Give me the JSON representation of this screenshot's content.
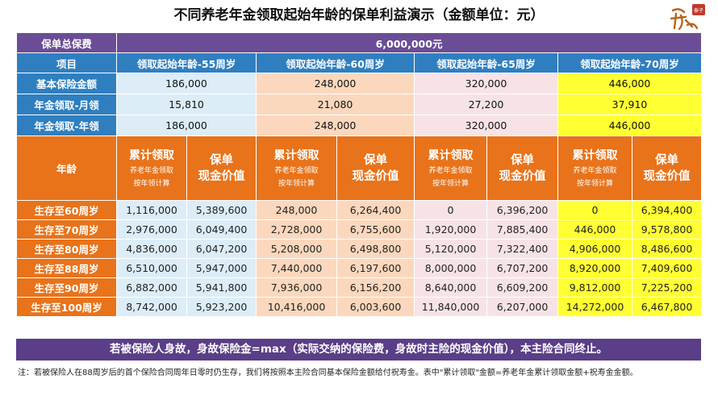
{
  "title": "不同养老年金领取起始年龄的保单利益演示（金额单位：元）",
  "logo_text": "泰子",
  "total_premium": {
    "label": "保单总保费",
    "value": "6,000,000元"
  },
  "item_row": {
    "label": "项目",
    "columns": [
      "领取起始年龄-55周岁",
      "领取起始年龄-60周岁",
      "领取起始年龄-65周岁",
      "领取起始年龄-70周岁"
    ]
  },
  "basic_amount": {
    "label": "基本保险金额",
    "values": [
      "186,000",
      "248,000",
      "320,000",
      "446,000"
    ]
  },
  "annuity_monthly": {
    "label": "年金领取-月领",
    "values": [
      "15,810",
      "21,080",
      "27,200",
      "37,910"
    ]
  },
  "annuity_yearly": {
    "label": "年金领取-年领",
    "values": [
      "186,000",
      "248,000",
      "320,000",
      "446,000"
    ]
  },
  "age_header": {
    "label": "年龄",
    "cum_title": "累计领取",
    "cum_sub1": "养老年金领取",
    "cum_sub2": "按年领计算",
    "cash_line1": "保单",
    "cash_line2": "现金价值"
  },
  "rows": [
    {
      "label": "生存至60周岁",
      "values": [
        "1,116,000",
        "5,389,600",
        "248,000",
        "6,264,400",
        "0",
        "6,396,200",
        "0",
        "6,394,400"
      ]
    },
    {
      "label": "生存至70周岁",
      "values": [
        "2,976,000",
        "6,049,400",
        "2,728,000",
        "6,755,600",
        "1,920,000",
        "7,885,400",
        "446,000",
        "9,578,800"
      ]
    },
    {
      "label": "生存至80周岁",
      "values": [
        "4,836,000",
        "6,047,200",
        "5,208,000",
        "6,498,800",
        "5,120,000",
        "7,322,400",
        "4,906,000",
        "8,486,600"
      ]
    },
    {
      "label": "生存至88周岁",
      "values": [
        "6,510,000",
        "5,947,000",
        "7,440,000",
        "6,197,600",
        "8,000,000",
        "6,707,200",
        "8,920,000",
        "7,409,600"
      ]
    },
    {
      "label": "生存至90周岁",
      "values": [
        "6,882,000",
        "5,941,800",
        "7,936,000",
        "6,156,200",
        "8,640,000",
        "6,609,200",
        "9,812,000",
        "7,225,200"
      ]
    },
    {
      "label": "生存至100周岁",
      "values": [
        "8,742,000",
        "5,923,200",
        "10,416,000",
        "6,003,600",
        "11,840,000",
        "6,207,000",
        "14,272,000",
        "6,467,800"
      ]
    }
  ],
  "death_benefit": "若被保险人身故，身故保险金=max（实际交纳的保险费，身故时主险的现金价值），本主险合同终止。",
  "note": "注：若被保险人在88周岁后的首个保险合同周年日零时仍生存，我们将按照本主险合同基本保险金额给付祝寿金。表中\"累计领取\"金额=养老年金累计领取金额+祝寿金金额。"
}
